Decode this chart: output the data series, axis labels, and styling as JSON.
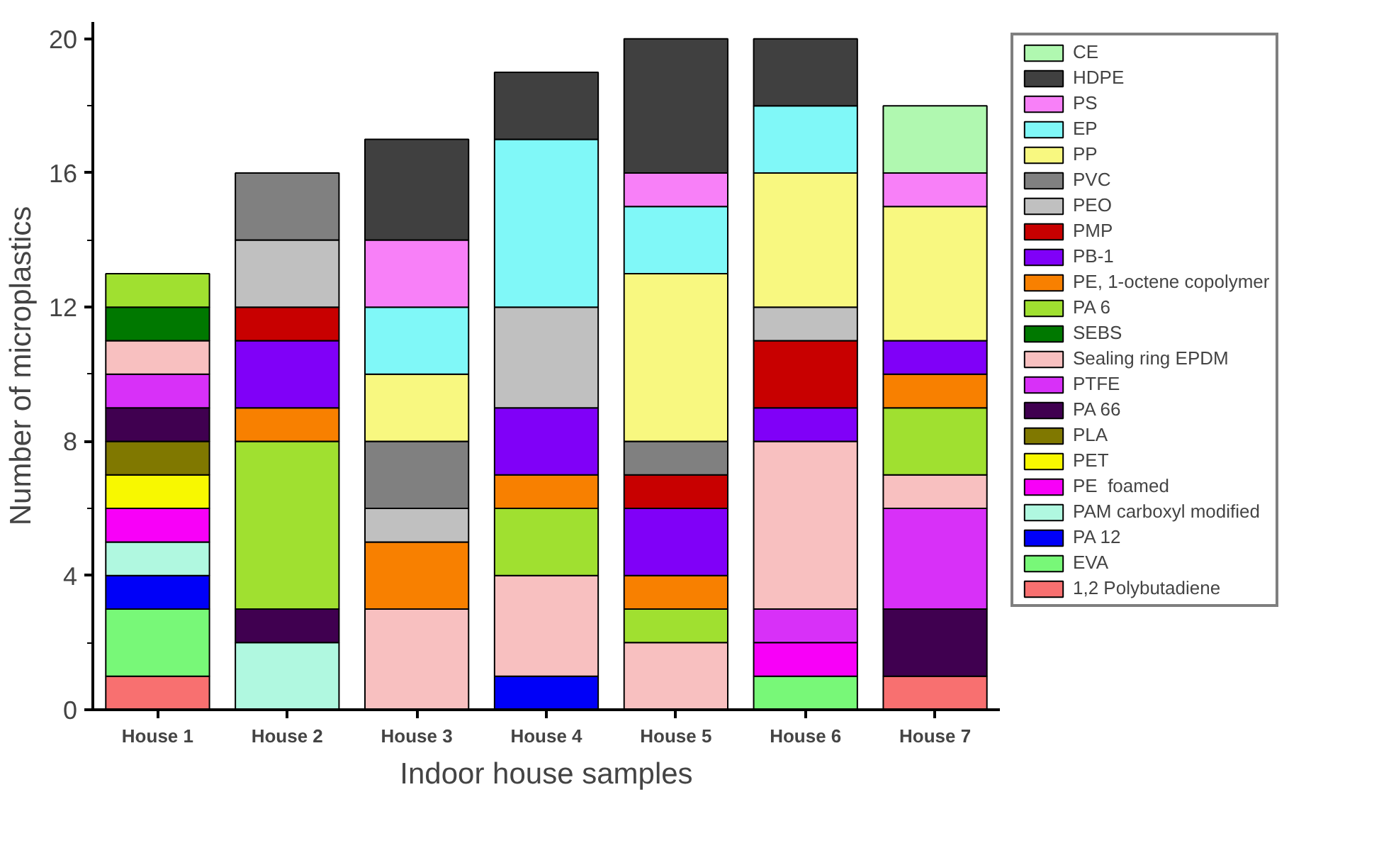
{
  "chart_data": {
    "type": "bar",
    "stacked": true,
    "xlabel": "Indoor house samples",
    "ylabel": "Number of microplastics",
    "categories": [
      "House 1",
      "House 2",
      "House 3",
      "House 4",
      "House 5",
      "House 6",
      "House 7"
    ],
    "ylim": [
      0,
      20.5
    ],
    "yticks": [
      0,
      4,
      8,
      12,
      16,
      20
    ],
    "grid": false,
    "legend": "right",
    "series": [
      {
        "name": "1,2 Polybutadiene",
        "color": "#f87070",
        "values": [
          1,
          null,
          null,
          null,
          null,
          null,
          1
        ]
      },
      {
        "name": "EVA",
        "color": "#78f878",
        "values": [
          2,
          null,
          null,
          null,
          null,
          1,
          null
        ]
      },
      {
        "name": "PA 12",
        "color": "#0000f8",
        "values": [
          1,
          null,
          null,
          1,
          null,
          null,
          null
        ]
      },
      {
        "name": "PAM carboxyl modified",
        "color": "#b0f8e0",
        "values": [
          1,
          2,
          null,
          null,
          null,
          null,
          null
        ]
      },
      {
        "name": "PE  foamed",
        "color": "#f800f8",
        "values": [
          1,
          null,
          null,
          null,
          null,
          1,
          null
        ]
      },
      {
        "name": "PET",
        "color": "#f8f800",
        "values": [
          1,
          null,
          null,
          null,
          null,
          null,
          null
        ]
      },
      {
        "name": "PLA",
        "color": "#807800",
        "values": [
          1,
          null,
          null,
          null,
          null,
          null,
          null
        ]
      },
      {
        "name": "PA 66",
        "color": "#400050",
        "values": [
          1,
          1,
          null,
          null,
          null,
          null,
          2
        ]
      },
      {
        "name": "PTFE",
        "color": "#d830f8",
        "values": [
          1,
          null,
          null,
          null,
          null,
          1,
          3
        ]
      },
      {
        "name": "Sealing ring EPDM",
        "color": "#f8c0c0",
        "values": [
          1,
          null,
          3,
          3,
          2,
          5,
          1
        ]
      },
      {
        "name": "SEBS",
        "color": "#007800",
        "values": [
          1,
          null,
          null,
          null,
          null,
          null,
          null
        ]
      },
      {
        "name": "PA 6",
        "color": "#a0e030",
        "values": [
          1,
          5,
          null,
          2,
          1,
          null,
          2
        ]
      },
      {
        "name": "PE, 1-octene copolymer",
        "color": "#f88000",
        "values": [
          null,
          1,
          2,
          1,
          1,
          null,
          1
        ]
      },
      {
        "name": "PB-1",
        "color": "#8000f8",
        "values": [
          null,
          2,
          null,
          2,
          2,
          1,
          1
        ]
      },
      {
        "name": "PMP",
        "color": "#c80000",
        "values": [
          null,
          1,
          null,
          null,
          1,
          2,
          null
        ]
      },
      {
        "name": "PEO",
        "color": "#c0c0c0",
        "values": [
          null,
          2,
          1,
          3,
          null,
          1,
          null
        ]
      },
      {
        "name": "PVC",
        "color": "#808080",
        "values": [
          null,
          2,
          2,
          null,
          1,
          null,
          null
        ]
      },
      {
        "name": "PP",
        "color": "#f8f880",
        "values": [
          null,
          null,
          2,
          null,
          5,
          4,
          4
        ]
      },
      {
        "name": "EP",
        "color": "#80f8f8",
        "values": [
          null,
          null,
          2,
          5,
          2,
          2,
          null
        ]
      },
      {
        "name": "PS",
        "color": "#f880f8",
        "values": [
          null,
          null,
          2,
          null,
          1,
          null,
          1
        ]
      },
      {
        "name": "HDPE",
        "color": "#404040",
        "values": [
          null,
          null,
          3,
          2,
          4,
          2,
          null
        ]
      },
      {
        "name": "CE",
        "color": "#b0f8b0",
        "values": [
          null,
          null,
          null,
          null,
          null,
          null,
          2
        ]
      }
    ]
  }
}
